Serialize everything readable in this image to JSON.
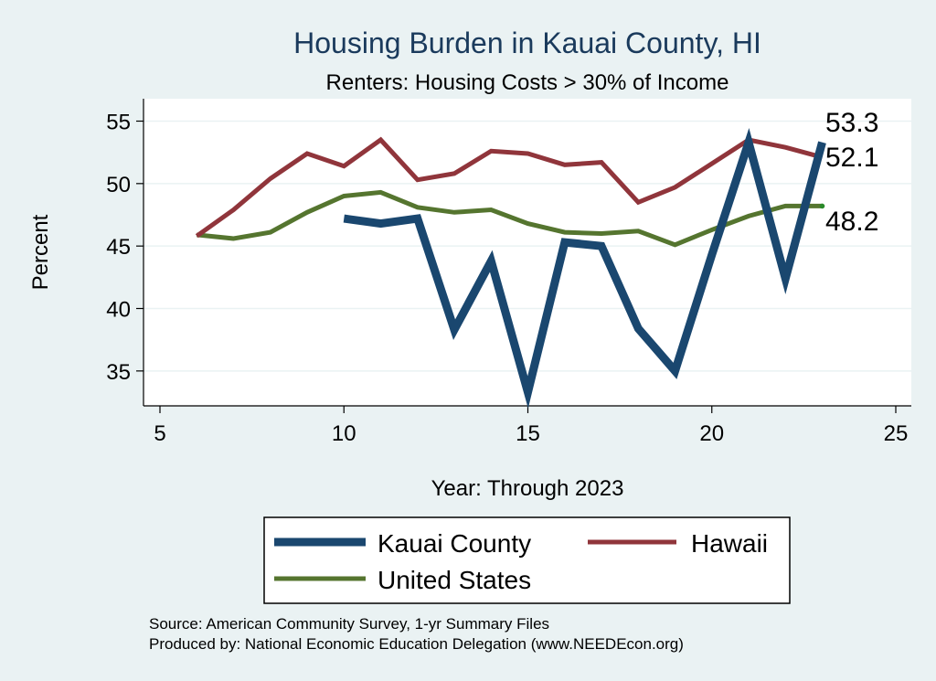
{
  "chart_data": {
    "type": "line",
    "title": "Housing Burden in Kauai County, HI",
    "subtitle": "Renters: Housing Costs > 30% of Income",
    "xlabel": "Year: Through 2023",
    "ylabel": "Percent",
    "xlim": [
      5,
      25
    ],
    "ylim": [
      32.5,
      56.5
    ],
    "xticks": [
      5,
      10,
      15,
      20,
      25
    ],
    "yticks": [
      35,
      40,
      45,
      50,
      55
    ],
    "grid": true,
    "legend_position": "bottom",
    "series": [
      {
        "name": "Kauai County",
        "color": "#1a476f",
        "width": 9,
        "x": [
          10,
          11,
          12,
          13,
          14,
          15,
          16,
          17,
          18,
          19,
          20,
          21,
          22,
          23
        ],
        "y": [
          47.2,
          46.8,
          47.2,
          38.3,
          43.8,
          33.3,
          45.3,
          45.0,
          38.4,
          35.0,
          44.3,
          53.3,
          42.4,
          53.3
        ],
        "end_label": "53.3"
      },
      {
        "name": "Hawaii",
        "color": "#90353b",
        "width": 5,
        "x": [
          6,
          7,
          8,
          9,
          10,
          11,
          12,
          13,
          14,
          15,
          16,
          17,
          18,
          19,
          20,
          21,
          22,
          23
        ],
        "y": [
          45.8,
          47.9,
          50.4,
          52.4,
          51.4,
          53.5,
          50.3,
          50.8,
          52.6,
          52.4,
          51.5,
          51.7,
          48.5,
          49.7,
          51.6,
          53.5,
          52.9,
          52.1
        ],
        "end_label": "52.1"
      },
      {
        "name": "United States",
        "color": "#55752f",
        "width": 5,
        "x": [
          6,
          7,
          8,
          9,
          10,
          11,
          12,
          13,
          14,
          15,
          16,
          17,
          18,
          19,
          20,
          21,
          22,
          23
        ],
        "y": [
          45.9,
          45.6,
          46.1,
          47.7,
          49.0,
          49.3,
          48.1,
          47.7,
          47.9,
          46.8,
          46.1,
          46.0,
          46.2,
          45.1,
          46.3,
          47.4,
          48.2,
          48.2
        ],
        "end_label": "48.2"
      }
    ]
  },
  "notes": {
    "source": "Source: American Community Survey, 1-yr Summary Files",
    "produced_by": "Produced by: National Economic Education Delegation (www.NEEDEcon.org)"
  }
}
